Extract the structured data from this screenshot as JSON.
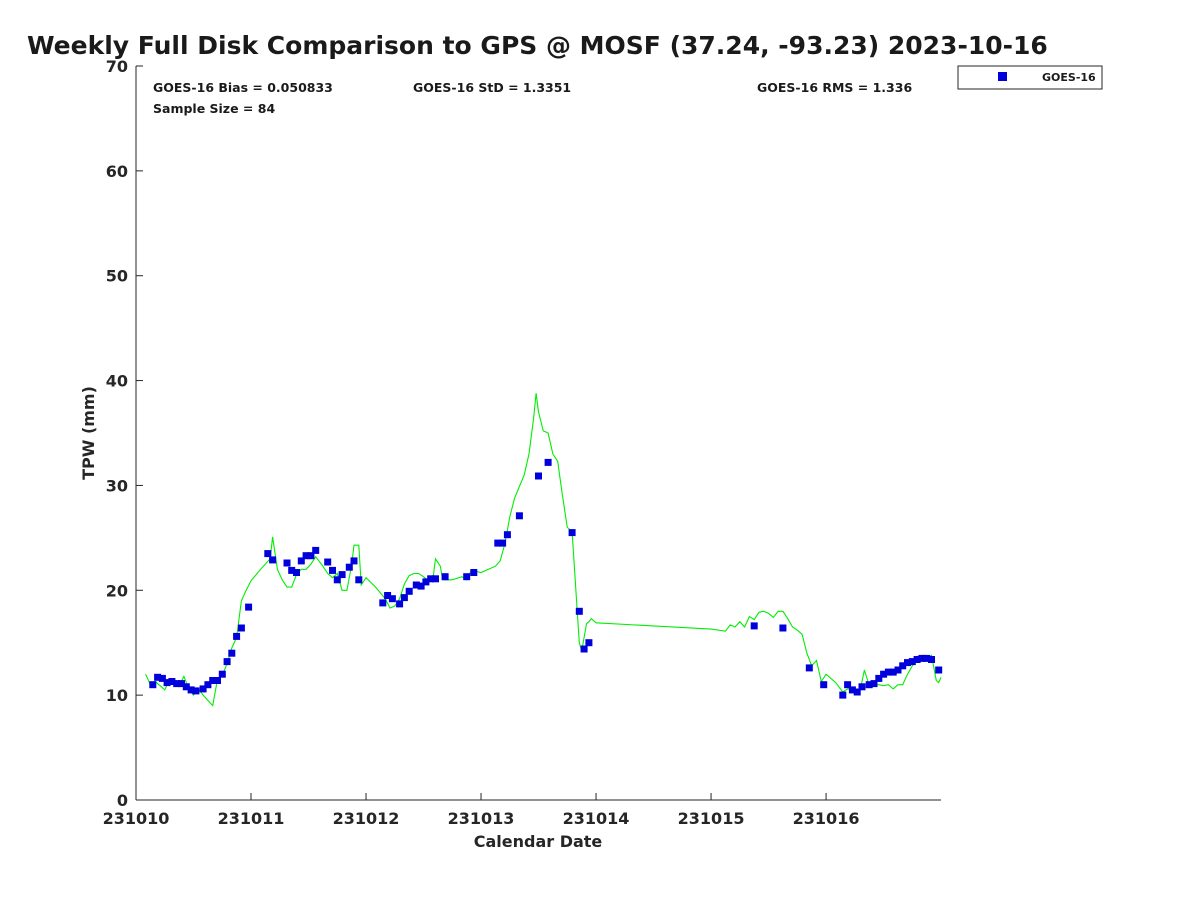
{
  "chart_data": {
    "type": "scatter",
    "title": "Weekly Full Disk Comparison to GPS @ MOSF (37.24, -93.23) 2023-10-16",
    "xlabel": "Calendar Date",
    "ylabel": "TPW (mm)",
    "xlim": [
      "2023-10-10T00:00",
      "2023-10-16T23:59"
    ],
    "ylim": [
      0,
      70
    ],
    "x_ticks": [
      "231010",
      "231011",
      "231012",
      "231013",
      "231014",
      "231015",
      "231016"
    ],
    "y_ticks": [
      0,
      10,
      20,
      30,
      40,
      50,
      60,
      70
    ],
    "grid": false,
    "legend": {
      "position": "top-right",
      "entries": [
        "GOES-16"
      ]
    },
    "stats": {
      "bias": "GOES-16 Bias = 0.050833",
      "std": "GOES-16 StD = 1.3351",
      "rms": "GOES-16 RMS = 1.336",
      "sample": "Sample Size = 84"
    },
    "series": [
      {
        "name": "GOES-16",
        "kind": "scatter",
        "color": "#0000dd",
        "points": [
          [
            "2023-10-10T03:30",
            11.0
          ],
          [
            "2023-10-10T04:30",
            11.7
          ],
          [
            "2023-10-10T05:30",
            11.6
          ],
          [
            "2023-10-10T06:30",
            11.2
          ],
          [
            "2023-10-10T07:30",
            11.3
          ],
          [
            "2023-10-10T08:30",
            11.1
          ],
          [
            "2023-10-10T09:30",
            11.1
          ],
          [
            "2023-10-10T10:30",
            10.8
          ],
          [
            "2023-10-10T11:30",
            10.5
          ],
          [
            "2023-10-10T12:30",
            10.4
          ],
          [
            "2023-10-10T14:00",
            10.6
          ],
          [
            "2023-10-10T15:00",
            11.0
          ],
          [
            "2023-10-10T16:00",
            11.4
          ],
          [
            "2023-10-10T17:00",
            11.4
          ],
          [
            "2023-10-10T18:00",
            12.0
          ],
          [
            "2023-10-10T19:00",
            13.2
          ],
          [
            "2023-10-10T20:00",
            14.0
          ],
          [
            "2023-10-10T21:00",
            15.6
          ],
          [
            "2023-10-10T22:00",
            16.4
          ],
          [
            "2023-10-10T23:30",
            18.4
          ],
          [
            "2023-10-11T03:30",
            23.5
          ],
          [
            "2023-10-11T04:30",
            22.9
          ],
          [
            "2023-10-11T07:30",
            22.6
          ],
          [
            "2023-10-11T08:30",
            21.9
          ],
          [
            "2023-10-11T09:30",
            21.7
          ],
          [
            "2023-10-11T10:30",
            22.8
          ],
          [
            "2023-10-11T11:30",
            23.3
          ],
          [
            "2023-10-11T12:30",
            23.3
          ],
          [
            "2023-10-11T13:30",
            23.8
          ],
          [
            "2023-10-11T16:00",
            22.7
          ],
          [
            "2023-10-11T17:00",
            21.9
          ],
          [
            "2023-10-11T18:00",
            21.0
          ],
          [
            "2023-10-11T19:00",
            21.5
          ],
          [
            "2023-10-11T20:30",
            22.2
          ],
          [
            "2023-10-11T21:30",
            22.8
          ],
          [
            "2023-10-11T22:30",
            21.0
          ],
          [
            "2023-10-12T03:30",
            18.8
          ],
          [
            "2023-10-12T04:30",
            19.5
          ],
          [
            "2023-10-12T05:30",
            19.2
          ],
          [
            "2023-10-12T07:00",
            18.7
          ],
          [
            "2023-10-12T08:00",
            19.3
          ],
          [
            "2023-10-12T09:00",
            19.9
          ],
          [
            "2023-10-12T10:30",
            20.5
          ],
          [
            "2023-10-12T11:30",
            20.4
          ],
          [
            "2023-10-12T12:30",
            20.8
          ],
          [
            "2023-10-12T13:30",
            21.1
          ],
          [
            "2023-10-12T14:30",
            21.1
          ],
          [
            "2023-10-12T16:30",
            21.3
          ],
          [
            "2023-10-12T21:00",
            21.3
          ],
          [
            "2023-10-12T22:30",
            21.7
          ],
          [
            "2023-10-13T03:30",
            24.5
          ],
          [
            "2023-10-13T04:30",
            24.5
          ],
          [
            "2023-10-13T05:30",
            25.3
          ],
          [
            "2023-10-13T08:00",
            27.1
          ],
          [
            "2023-10-13T12:00",
            30.9
          ],
          [
            "2023-10-13T14:00",
            32.2
          ],
          [
            "2023-10-13T19:00",
            25.5
          ],
          [
            "2023-10-13T20:30",
            18.0
          ],
          [
            "2023-10-13T21:30",
            14.4
          ],
          [
            "2023-10-13T22:30",
            15.0
          ],
          [
            "2023-10-15T09:00",
            16.6
          ],
          [
            "2023-10-15T15:00",
            16.4
          ],
          [
            "2023-10-15T20:30",
            12.6
          ],
          [
            "2023-10-15T23:30",
            11.0
          ],
          [
            "2023-10-16T03:30",
            10.0
          ],
          [
            "2023-10-16T04:30",
            11.0
          ],
          [
            "2023-10-16T05:30",
            10.5
          ],
          [
            "2023-10-16T06:30",
            10.3
          ],
          [
            "2023-10-16T07:30",
            10.8
          ],
          [
            "2023-10-16T09:00",
            11.0
          ],
          [
            "2023-10-16T10:00",
            11.1
          ],
          [
            "2023-10-16T11:00",
            11.6
          ],
          [
            "2023-10-16T12:00",
            12.0
          ],
          [
            "2023-10-16T13:00",
            12.2
          ],
          [
            "2023-10-16T14:00",
            12.2
          ],
          [
            "2023-10-16T15:00",
            12.4
          ],
          [
            "2023-10-16T16:00",
            12.8
          ],
          [
            "2023-10-16T17:00",
            13.1
          ],
          [
            "2023-10-16T18:00",
            13.2
          ],
          [
            "2023-10-16T19:00",
            13.4
          ],
          [
            "2023-10-16T20:00",
            13.5
          ],
          [
            "2023-10-16T21:00",
            13.5
          ],
          [
            "2023-10-16T22:00",
            13.4
          ],
          [
            "2023-10-16T23:30",
            12.4
          ]
        ]
      },
      {
        "kind": "line",
        "color": "#00ee00",
        "points": [
          [
            "2023-10-10T02:00",
            12.0
          ],
          [
            "2023-10-10T03:00",
            11.0
          ],
          [
            "2023-10-10T04:00",
            11.3
          ],
          [
            "2023-10-10T05:00",
            10.9
          ],
          [
            "2023-10-10T06:00",
            10.5
          ],
          [
            "2023-10-10T07:00",
            11.5
          ],
          [
            "2023-10-10T08:00",
            11.1
          ],
          [
            "2023-10-10T09:00",
            10.9
          ],
          [
            "2023-10-10T10:00",
            11.8
          ],
          [
            "2023-10-10T11:00",
            10.6
          ],
          [
            "2023-10-10T12:00",
            10.0
          ],
          [
            "2023-10-10T13:00",
            10.6
          ],
          [
            "2023-10-10T14:00",
            10.0
          ],
          [
            "2023-10-10T15:00",
            9.5
          ],
          [
            "2023-10-10T16:00",
            9.0
          ],
          [
            "2023-10-10T17:00",
            11.5
          ],
          [
            "2023-10-10T18:00",
            11.9
          ],
          [
            "2023-10-10T19:00",
            13.0
          ],
          [
            "2023-10-10T20:00",
            14.5
          ],
          [
            "2023-10-10T21:00",
            15.5
          ],
          [
            "2023-10-10T22:00",
            19.0
          ],
          [
            "2023-10-10T23:00",
            20.0
          ],
          [
            "2023-10-11T00:00",
            20.9
          ],
          [
            "2023-10-11T02:00",
            22.0
          ],
          [
            "2023-10-11T04:00",
            23.0
          ],
          [
            "2023-10-11T04:30",
            25.1
          ],
          [
            "2023-10-11T05:30",
            22.0
          ],
          [
            "2023-10-11T06:30",
            21.0
          ],
          [
            "2023-10-11T07:30",
            20.3
          ],
          [
            "2023-10-11T08:30",
            20.3
          ],
          [
            "2023-10-11T09:30",
            21.5
          ],
          [
            "2023-10-11T10:30",
            22.0
          ],
          [
            "2023-10-11T11:30",
            22.0
          ],
          [
            "2023-10-11T12:30",
            22.5
          ],
          [
            "2023-10-11T13:30",
            23.2
          ],
          [
            "2023-10-11T15:00",
            22.3
          ],
          [
            "2023-10-11T16:00",
            21.6
          ],
          [
            "2023-10-11T17:00",
            21.2
          ],
          [
            "2023-10-11T18:00",
            21.6
          ],
          [
            "2023-10-11T19:00",
            20.0
          ],
          [
            "2023-10-11T20:00",
            20.0
          ],
          [
            "2023-10-11T21:00",
            22.4
          ],
          [
            "2023-10-11T21:30",
            24.3
          ],
          [
            "2023-10-11T22:30",
            24.3
          ],
          [
            "2023-10-11T23:00",
            20.5
          ],
          [
            "2023-10-12T00:00",
            21.2
          ],
          [
            "2023-10-12T02:00",
            20.3
          ],
          [
            "2023-10-12T04:00",
            19.2
          ],
          [
            "2023-10-12T05:00",
            18.3
          ],
          [
            "2023-10-12T06:00",
            18.5
          ],
          [
            "2023-10-12T07:00",
            19.2
          ],
          [
            "2023-10-12T08:00",
            20.6
          ],
          [
            "2023-10-12T09:00",
            21.4
          ],
          [
            "2023-10-12T10:00",
            21.6
          ],
          [
            "2023-10-12T11:00",
            21.6
          ],
          [
            "2023-10-12T12:00",
            21.3
          ],
          [
            "2023-10-12T13:00",
            20.9
          ],
          [
            "2023-10-12T14:00",
            21.2
          ],
          [
            "2023-10-12T14:30",
            23.0
          ],
          [
            "2023-10-12T15:30",
            22.3
          ],
          [
            "2023-10-12T16:00",
            21.0
          ],
          [
            "2023-10-12T18:00",
            21.0
          ],
          [
            "2023-10-12T20:00",
            21.3
          ],
          [
            "2023-10-12T21:00",
            21.0
          ],
          [
            "2023-10-12T22:00",
            21.9
          ],
          [
            "2023-10-13T00:00",
            21.7
          ],
          [
            "2023-10-13T03:00",
            22.3
          ],
          [
            "2023-10-13T04:00",
            22.8
          ],
          [
            "2023-10-13T05:00",
            24.5
          ],
          [
            "2023-10-13T06:00",
            27.0
          ],
          [
            "2023-10-13T07:00",
            28.8
          ],
          [
            "2023-10-13T09:00",
            31.0
          ],
          [
            "2023-10-13T10:00",
            33.0
          ],
          [
            "2023-10-13T11:00",
            36.5
          ],
          [
            "2023-10-13T11:30",
            38.8
          ],
          [
            "2023-10-13T12:00",
            37.0
          ],
          [
            "2023-10-13T13:00",
            35.2
          ],
          [
            "2023-10-13T14:00",
            35.0
          ],
          [
            "2023-10-13T15:00",
            33.0
          ],
          [
            "2023-10-13T16:00",
            32.3
          ],
          [
            "2023-10-13T17:00",
            29.0
          ],
          [
            "2023-10-13T18:00",
            26.0
          ],
          [
            "2023-10-13T19:00",
            25.6
          ],
          [
            "2023-10-13T20:00",
            18.5
          ],
          [
            "2023-10-13T20:30",
            15.0
          ],
          [
            "2023-10-13T21:00",
            14.2
          ],
          [
            "2023-10-13T22:00",
            16.8
          ],
          [
            "2023-10-13T22:30",
            17.0
          ],
          [
            "2023-10-13T23:00",
            17.3
          ],
          [
            "2023-10-14T00:00",
            16.9
          ],
          [
            "2023-10-15T00:00",
            16.3
          ],
          [
            "2023-10-15T03:00",
            16.1
          ],
          [
            "2023-10-15T04:00",
            16.7
          ],
          [
            "2023-10-15T05:00",
            16.5
          ],
          [
            "2023-10-15T06:00",
            17.0
          ],
          [
            "2023-10-15T07:00",
            16.5
          ],
          [
            "2023-10-15T08:00",
            17.5
          ],
          [
            "2023-10-15T09:00",
            17.2
          ],
          [
            "2023-10-15T10:00",
            17.9
          ],
          [
            "2023-10-15T11:00",
            18.0
          ],
          [
            "2023-10-15T12:00",
            17.8
          ],
          [
            "2023-10-15T13:00",
            17.4
          ],
          [
            "2023-10-15T14:00",
            18.0
          ],
          [
            "2023-10-15T15:00",
            18.0
          ],
          [
            "2023-10-15T16:00",
            17.3
          ],
          [
            "2023-10-15T17:00",
            16.5
          ],
          [
            "2023-10-15T18:00",
            16.2
          ],
          [
            "2023-10-15T19:00",
            15.8
          ],
          [
            "2023-10-15T20:00",
            14.0
          ],
          [
            "2023-10-15T21:00",
            12.8
          ],
          [
            "2023-10-15T22:00",
            13.3
          ],
          [
            "2023-10-15T23:00",
            11.3
          ],
          [
            "2023-10-16T00:00",
            12.0
          ],
          [
            "2023-10-16T02:00",
            11.2
          ],
          [
            "2023-10-16T03:30",
            10.3
          ],
          [
            "2023-10-16T04:30",
            10.6
          ],
          [
            "2023-10-16T06:00",
            10.5
          ],
          [
            "2023-10-16T07:00",
            10.2
          ],
          [
            "2023-10-16T08:00",
            12.4
          ],
          [
            "2023-10-16T09:00",
            10.9
          ],
          [
            "2023-10-16T10:00",
            11.0
          ],
          [
            "2023-10-16T11:00",
            11.0
          ],
          [
            "2023-10-16T12:00",
            10.9
          ],
          [
            "2023-10-16T13:00",
            11.0
          ],
          [
            "2023-10-16T14:00",
            10.6
          ],
          [
            "2023-10-16T15:00",
            11.0
          ],
          [
            "2023-10-16T16:00",
            11.0
          ],
          [
            "2023-10-16T17:00",
            12.0
          ],
          [
            "2023-10-16T18:00",
            12.8
          ],
          [
            "2023-10-16T19:00",
            13.3
          ],
          [
            "2023-10-16T20:00",
            13.7
          ],
          [
            "2023-10-16T21:00",
            13.3
          ],
          [
            "2023-10-16T22:00",
            13.8
          ],
          [
            "2023-10-16T23:00",
            11.4
          ],
          [
            "2023-10-16T23:30",
            11.2
          ],
          [
            "2023-10-16T23:59",
            11.7
          ]
        ]
      }
    ]
  }
}
